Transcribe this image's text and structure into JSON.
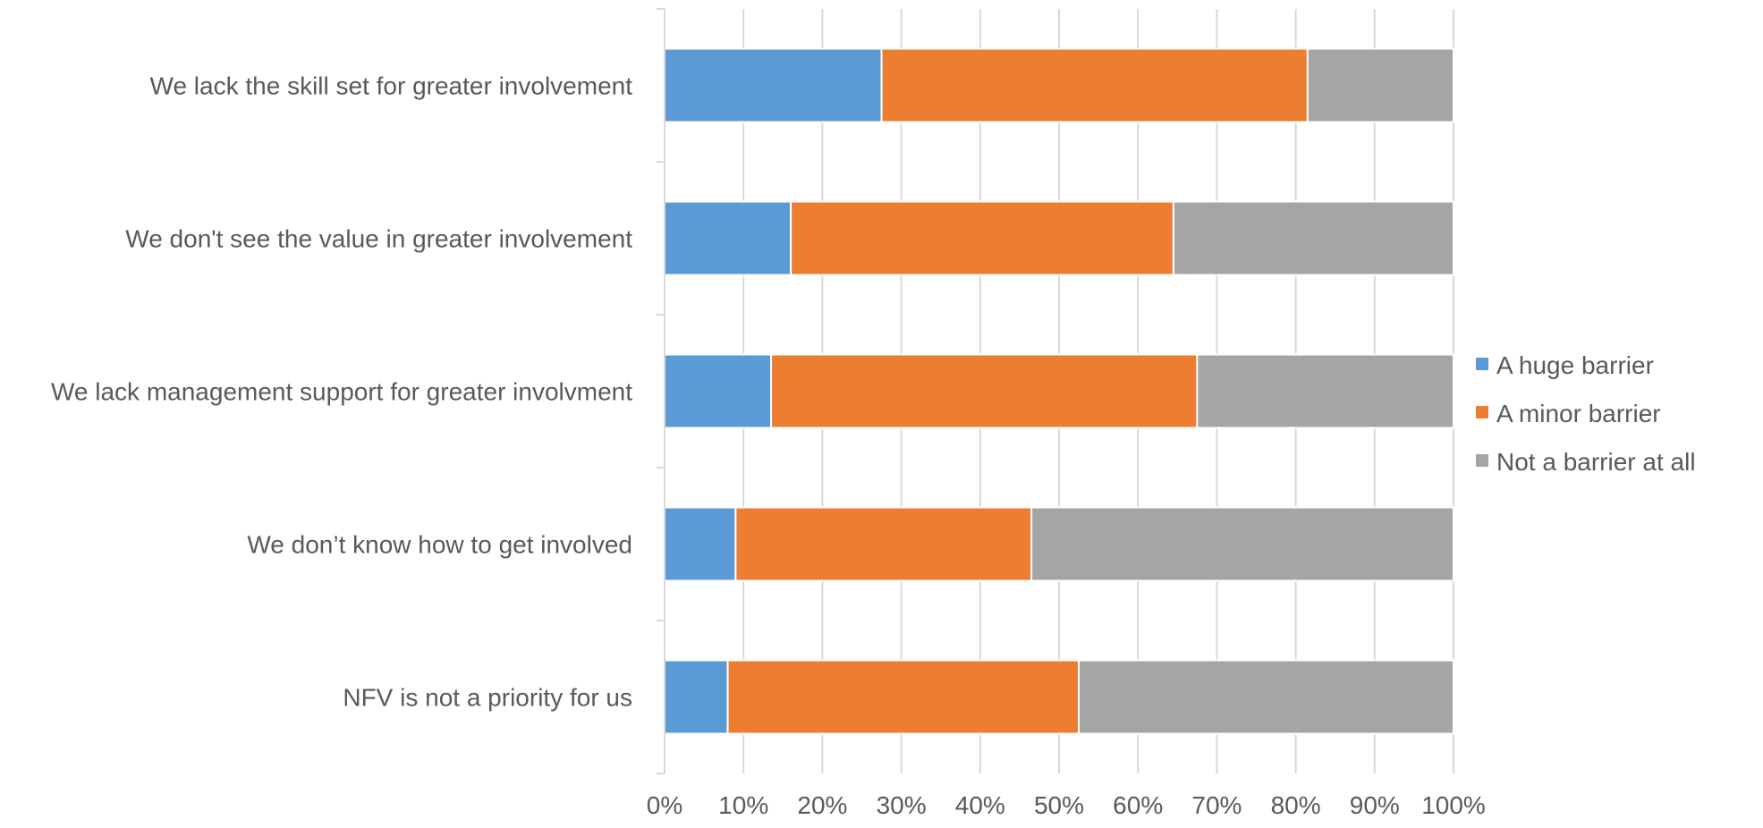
{
  "chart_data": {
    "type": "bar",
    "orientation": "horizontal",
    "stacked": "percent",
    "categories": [
      "We lack the skill set for greater involvement",
      "We don't see the value in greater involvement",
      "We lack management support for greater involvment",
      "We don’t know how to get involved",
      "NFV is not a priority for us"
    ],
    "series": [
      {
        "name": "A huge barrier",
        "color": "#5b9bd5",
        "values": [
          27.5,
          16,
          13.5,
          9,
          8
        ]
      },
      {
        "name": "A minor barrier",
        "color": "#ed7d31",
        "values": [
          54,
          48.5,
          54,
          37.5,
          44.5
        ]
      },
      {
        "name": "Not a barrier at all",
        "color": "#a5a5a5",
        "values": [
          18.5,
          35.5,
          32.5,
          53.5,
          47.5
        ]
      }
    ],
    "xlim": [
      0,
      100
    ],
    "xticks": [
      "0%",
      "10%",
      "20%",
      "30%",
      "40%",
      "50%",
      "60%",
      "70%",
      "80%",
      "90%",
      "100%"
    ],
    "title": "",
    "xlabel": "",
    "ylabel": "",
    "grid": true,
    "legend_position": "right"
  }
}
